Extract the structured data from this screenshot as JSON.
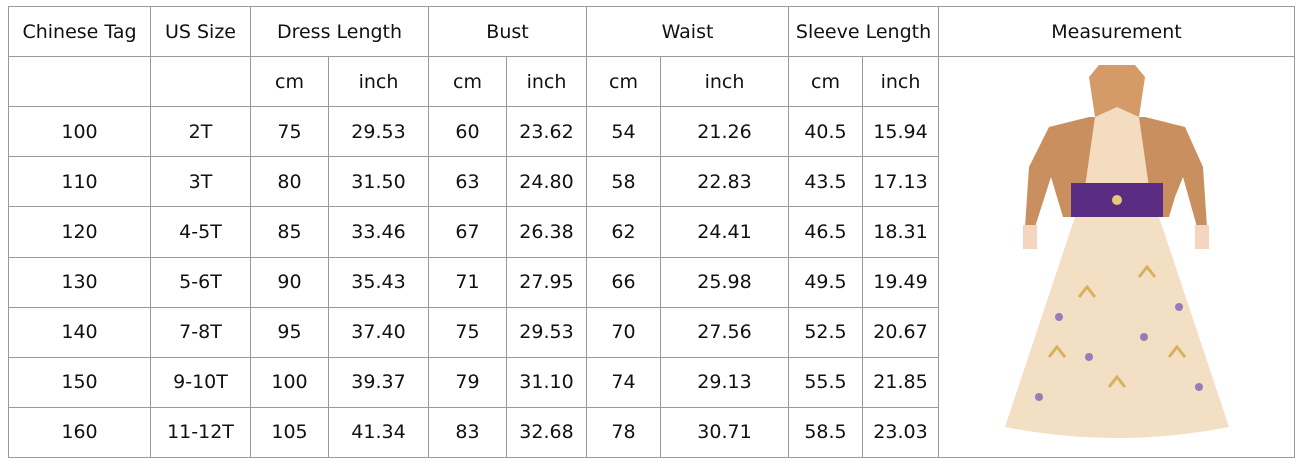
{
  "table": {
    "header": [
      "Chinese Tag",
      "US Size",
      "Dress Length",
      "Bust",
      "Waist",
      "Sleeve Length",
      "Measurement"
    ],
    "units": [
      "cm",
      "inch",
      "cm",
      "inch",
      "cm",
      "inch",
      "cm",
      "inch"
    ],
    "rows": [
      [
        "100",
        "2T",
        "75",
        "29.53",
        "60",
        "23.62",
        "54",
        "21.26",
        "40.5",
        "15.94"
      ],
      [
        "110",
        "3T",
        "80",
        "31.50",
        "63",
        "24.80",
        "58",
        "22.83",
        "43.5",
        "17.13"
      ],
      [
        "120",
        "4-5T",
        "85",
        "33.46",
        "67",
        "26.38",
        "62",
        "24.41",
        "46.5",
        "18.31"
      ],
      [
        "130",
        "5-6T",
        "90",
        "35.43",
        "71",
        "27.95",
        "66",
        "25.98",
        "49.5",
        "19.49"
      ],
      [
        "140",
        "7-8T",
        "95",
        "37.40",
        "75",
        "29.53",
        "70",
        "27.56",
        "52.5",
        "20.67"
      ],
      [
        "150",
        "9-10T",
        "100",
        "39.37",
        "79",
        "31.10",
        "74",
        "29.13",
        "55.5",
        "21.85"
      ],
      [
        "160",
        "11-12T",
        "105",
        "41.34",
        "83",
        "32.68",
        "78",
        "30.71",
        "58.5",
        "23.03"
      ]
    ]
  }
}
